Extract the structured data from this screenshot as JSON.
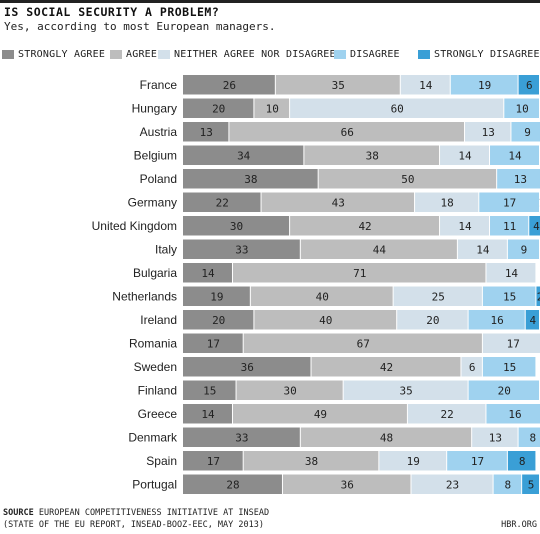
{
  "title": "IS SOCIAL SECURITY A PROBLEM?",
  "subtitle": "Yes, according to most European managers.",
  "colors": {
    "strongly_agree": "#8c8c8c",
    "agree": "#bdbdbd",
    "neither": "#d3e0ea",
    "disagree": "#9fd2ef",
    "strongly_disagree": "#3a9fd6"
  },
  "legend": [
    {
      "label": "STRONGLY AGREE",
      "color": "#8c8c8c"
    },
    {
      "label": "AGREE",
      "color": "#bdbdbd"
    },
    {
      "label": "NEITHER AGREE NOR DISAGREE",
      "color": "#d3e0ea"
    },
    {
      "label": "DISAGREE",
      "color": "#9fd2ef"
    },
    {
      "label": "STRONGLY DISAGREE",
      "color": "#3a9fd6"
    }
  ],
  "chart_data": {
    "type": "bar",
    "orientation": "horizontal",
    "stacked": true,
    "title": "IS SOCIAL SECURITY A PROBLEM?",
    "subtitle": "Yes, according to most European managers.",
    "unit": "percent",
    "xlim": [
      0,
      100
    ],
    "legend_position": "top",
    "categories": [
      "France",
      "Hungary",
      "Austria",
      "Belgium",
      "Poland",
      "Germany",
      "United Kingdom",
      "Italy",
      "Bulgaria",
      "Netherlands",
      "Ireland",
      "Romania",
      "Sweden",
      "Finland",
      "Greece",
      "Denmark",
      "Spain",
      "Portugal"
    ],
    "series": [
      {
        "name": "STRONGLY AGREE",
        "values": [
          26,
          20,
          13,
          34,
          38,
          22,
          30,
          33,
          14,
          19,
          20,
          17,
          36,
          15,
          14,
          33,
          17,
          28
        ]
      },
      {
        "name": "AGREE",
        "values": [
          35,
          10,
          66,
          38,
          50,
          43,
          42,
          44,
          71,
          40,
          40,
          67,
          42,
          30,
          49,
          48,
          38,
          36
        ]
      },
      {
        "name": "NEITHER AGREE NOR DISAGREE",
        "values": [
          14,
          60,
          13,
          14,
          0,
          18,
          14,
          14,
          14,
          25,
          20,
          17,
          6,
          35,
          22,
          13,
          19,
          23
        ]
      },
      {
        "name": "DISAGREE",
        "values": [
          19,
          10,
          9,
          14,
          13,
          17,
          11,
          9,
          0,
          15,
          16,
          0,
          15,
          20,
          16,
          8,
          17,
          8
        ]
      },
      {
        "name": "STRONGLY DISAGREE",
        "values": [
          6,
          0,
          0,
          0,
          0,
          1,
          4,
          0,
          0,
          2,
          4,
          0,
          0,
          0,
          0,
          0,
          8,
          5
        ]
      }
    ]
  },
  "footer": {
    "source_label": "SOURCE",
    "source_text": " EUROPEAN COMPETITIVENESS INITIATIVE AT INSEAD",
    "source_text2": "(STATE OF THE EU REPORT, INSEAD-BOOZ-EEC, MAY 2013)",
    "brand": "HBR.ORG"
  }
}
